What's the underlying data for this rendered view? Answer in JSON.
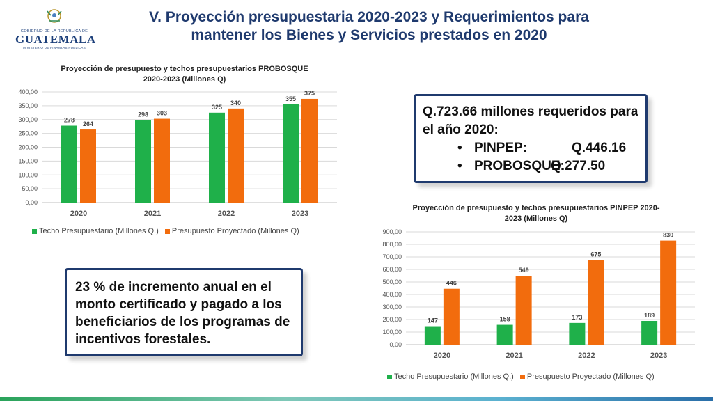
{
  "header": {
    "logo": {
      "line1": "GOBIERNO DE LA REPÚBLICA DE",
      "line2": "GUATEMALA",
      "line3": "MINISTERIO DE FINANZAS PÚBLICAS"
    },
    "title_line1": "V. Proyección presupuestaria 2020-2023 y Requerimientos para",
    "title_line2": "mantener los Bienes y Servicios prestados en 2020"
  },
  "info_box": {
    "heading": "Q.723.66 millones requeridos para el año 2020:",
    "items": [
      {
        "bullet": "•",
        "label": "PINPEP:",
        "value": "Q.446.16"
      },
      {
        "bullet": "•",
        "label": "PROBOSQUE:",
        "value": "Q.277.50"
      }
    ]
  },
  "note_box": {
    "text": "23 % de incremento anual en el monto certificado y pagado a los beneficiarios de los programas de incentivos forestales."
  },
  "colors": {
    "techo": "#1fb04a",
    "presupuesto": "#f26c0d",
    "title": "#1f3a6e",
    "grid": "#d9d9d9"
  },
  "chart_data": [
    {
      "type": "bar",
      "title_line1": "Proyección de presupuesto y techos presupuestarios PROBOSQUE",
      "title_line2": "2020-2023 (Millones Q)",
      "categories": [
        "2020",
        "2021",
        "2022",
        "2023"
      ],
      "series": [
        {
          "name": "Techo Presupuestario (Millones Q.)",
          "values": [
            278,
            298,
            325,
            355
          ],
          "labels": [
            "278",
            "298",
            "325",
            "355"
          ]
        },
        {
          "name": "Presupuesto Proyectado (Millones Q)",
          "values": [
            264,
            303,
            340,
            375
          ],
          "labels": [
            "264",
            "303",
            "340",
            "375"
          ]
        }
      ],
      "ylim": [
        0,
        400
      ],
      "yticks": [
        "0,00",
        "50,00",
        "100,00",
        "150,00",
        "200,00",
        "250,00",
        "300,00",
        "350,00",
        "400,00"
      ],
      "grid": true,
      "legend": "bottom"
    },
    {
      "type": "bar",
      "title_line1": "Proyección de presupuesto y techos presupuestarios PINPEP 2020-",
      "title_line2": "2023 (Millones Q)",
      "categories": [
        "2020",
        "2021",
        "2022",
        "2023"
      ],
      "series": [
        {
          "name": "Techo Presupuestario (Millones Q.)",
          "values": [
            147,
            158,
            173,
            189
          ],
          "labels": [
            "147",
            "158",
            "173",
            "189"
          ]
        },
        {
          "name": "Presupuesto Proyectado (Millones Q)",
          "values": [
            446,
            549,
            675,
            830
          ],
          "labels": [
            "446",
            "549",
            "675",
            "830"
          ]
        }
      ],
      "ylim": [
        0,
        900
      ],
      "yticks": [
        "0,00",
        "100,00",
        "200,00",
        "300,00",
        "400,00",
        "500,00",
        "600,00",
        "700,00",
        "800,00",
        "900,00"
      ],
      "grid": true,
      "legend": "bottom"
    }
  ]
}
